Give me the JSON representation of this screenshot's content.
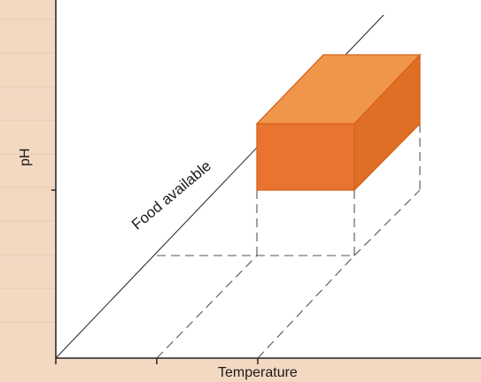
{
  "diagram": {
    "axes": {
      "x_label": "Temperature",
      "y_label": "pH"
    },
    "diagonal_label": "Food available",
    "colors": {
      "box_front": "#e8742f",
      "box_top": "#f0964b",
      "box_side": "#d9681f",
      "box_edge": "#d7621e",
      "background": "#f3d9c2",
      "panel": "#ffffff",
      "axis": "#222222"
    }
  }
}
